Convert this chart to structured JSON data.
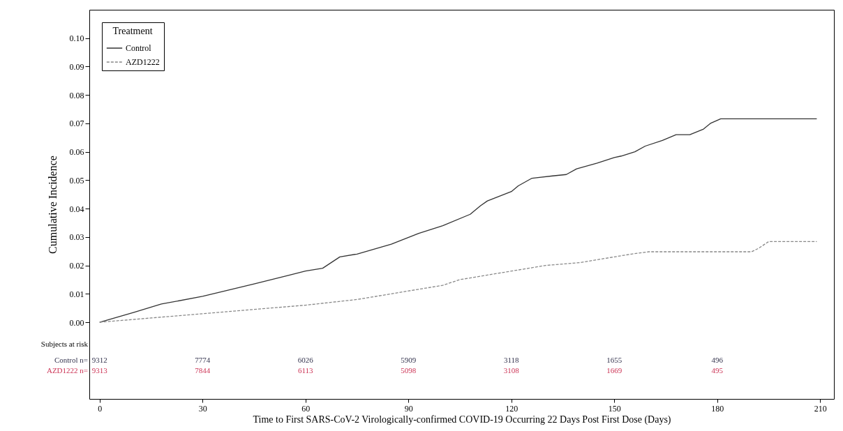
{
  "chart_data": {
    "type": "line",
    "xlabel": "Time to First SARS-CoV-2 Virologically-confirmed COVID-19 Occurring 22 Days Post First Dose (Days)",
    "ylabel": "Cumulative Incidence",
    "legend_title": "Treatment",
    "legend": "top left",
    "grid": false,
    "marker": "none",
    "xlim": [
      -3,
      214
    ],
    "ylim": [
      -0.027,
      0.11
    ],
    "xticks": [
      0,
      30,
      60,
      90,
      120,
      150,
      180,
      210
    ],
    "yticks": [
      {
        "value": 0,
        "label": "0.00"
      },
      0.01,
      0.02,
      0.03,
      0.04,
      0.05,
      0.06,
      0.07,
      0.08,
      0.09,
      {
        "value": 0.1,
        "label": "0.10"
      }
    ],
    "series": [
      {
        "name": "Control",
        "color": "#333333",
        "line_style": "solid",
        "x": [
          0,
          10,
          18,
          30,
          45,
          55,
          60,
          65,
          70,
          75,
          85,
          93,
          100,
          108,
          111,
          113,
          120,
          122,
          126,
          132,
          136,
          139,
          145,
          150,
          152,
          156,
          159,
          164,
          168,
          172,
          176,
          178,
          181,
          209
        ],
        "values": [
          0,
          0.0035,
          0.0064,
          0.0091,
          0.0135,
          0.0165,
          0.018,
          0.019,
          0.023,
          0.024,
          0.0275,
          0.0313,
          0.034,
          0.038,
          0.041,
          0.0427,
          0.046,
          0.048,
          0.0507,
          0.0515,
          0.052,
          0.054,
          0.056,
          0.058,
          0.0585,
          0.06,
          0.062,
          0.064,
          0.066,
          0.066,
          0.068,
          0.07,
          0.0716,
          0.0716
        ]
      },
      {
        "name": "AZD1222",
        "color": "#888888",
        "line_style": "dashed",
        "x": [
          0,
          15,
          30,
          45,
          60,
          75,
          90,
          100,
          105,
          120,
          130,
          140,
          150,
          155,
          160,
          190,
          192,
          195,
          209
        ],
        "values": [
          0,
          0.0015,
          0.003,
          0.0045,
          0.006,
          0.008,
          0.011,
          0.013,
          0.015,
          0.018,
          0.02,
          0.021,
          0.023,
          0.024,
          0.0248,
          0.0248,
          0.026,
          0.0284,
          0.0284
        ]
      }
    ],
    "annotations": [
      "Subjects at risk",
      "Control n=",
      "9312",
      "7774",
      "6026",
      "5909",
      "3118",
      "1655",
      "496",
      "AZD1222 n=",
      "9313",
      "7844",
      "6113",
      "5098",
      "3108",
      "1669",
      "495"
    ]
  }
}
